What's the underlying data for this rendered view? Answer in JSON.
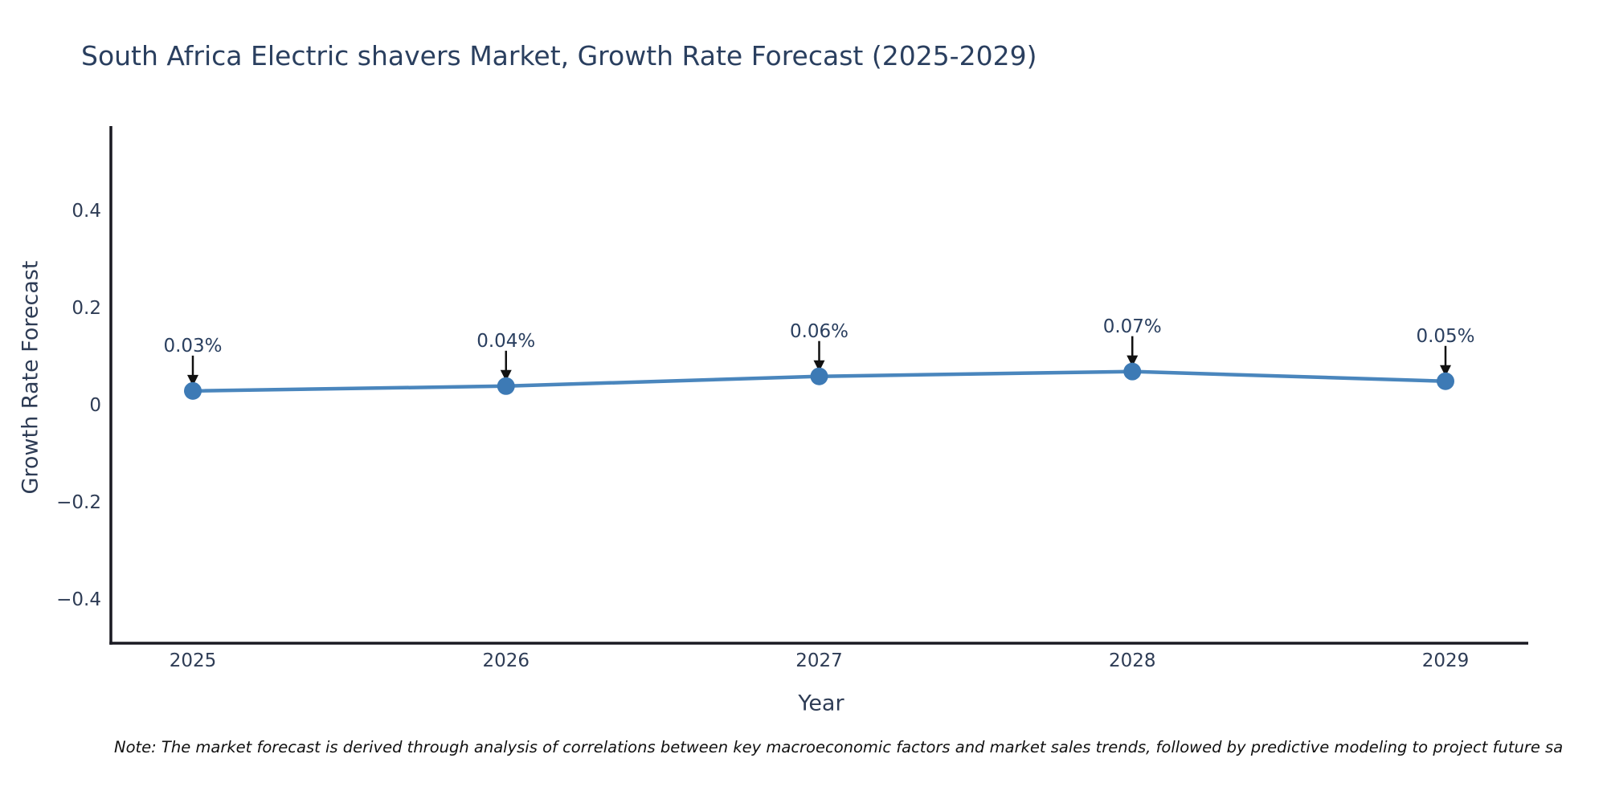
{
  "title": "South Africa Electric shavers Market, Growth Rate Forecast (2025-2029)",
  "chart_data": {
    "type": "line",
    "title": "South Africa Electric shavers Market, Growth Rate Forecast (2025-2029)",
    "x": [
      2025,
      2026,
      2027,
      2028,
      2029
    ],
    "y": [
      0.03,
      0.04,
      0.06,
      0.07,
      0.05
    ],
    "point_labels": [
      "0.03%",
      "0.04%",
      "0.06%",
      "0.07%",
      "0.05%"
    ],
    "xlabel": "Year",
    "ylabel": "Growth Rate Forecast",
    "ylim": [
      -0.49,
      0.58
    ],
    "yticks": [
      0.4,
      0.2,
      0,
      -0.2,
      -0.4
    ],
    "grid": false,
    "legend": "none",
    "marker": "circle",
    "annotation_arrows": "down"
  },
  "axes": {
    "y_tick_labels": [
      "0.4",
      "0.2",
      "0",
      "−0.2",
      "−0.4"
    ],
    "y_tick_values": [
      0.4,
      0.2,
      0,
      -0.2,
      -0.4
    ],
    "x_tick_labels": [
      "2025",
      "2026",
      "2027",
      "2028",
      "2029"
    ]
  },
  "colors": {
    "title": "#2a3f5f",
    "ticks": "#2e3c55",
    "line": "#4a86bd",
    "marker": "#3d7ab5",
    "arrow": "#111111",
    "spine": "#1a1a22",
    "note": "#111111",
    "background": "#ffffff"
  },
  "note": "Note: The market forecast is derived through analysis of correlations between key macroeconomic factors and market sales trends, followed by predictive modeling to project future sa"
}
